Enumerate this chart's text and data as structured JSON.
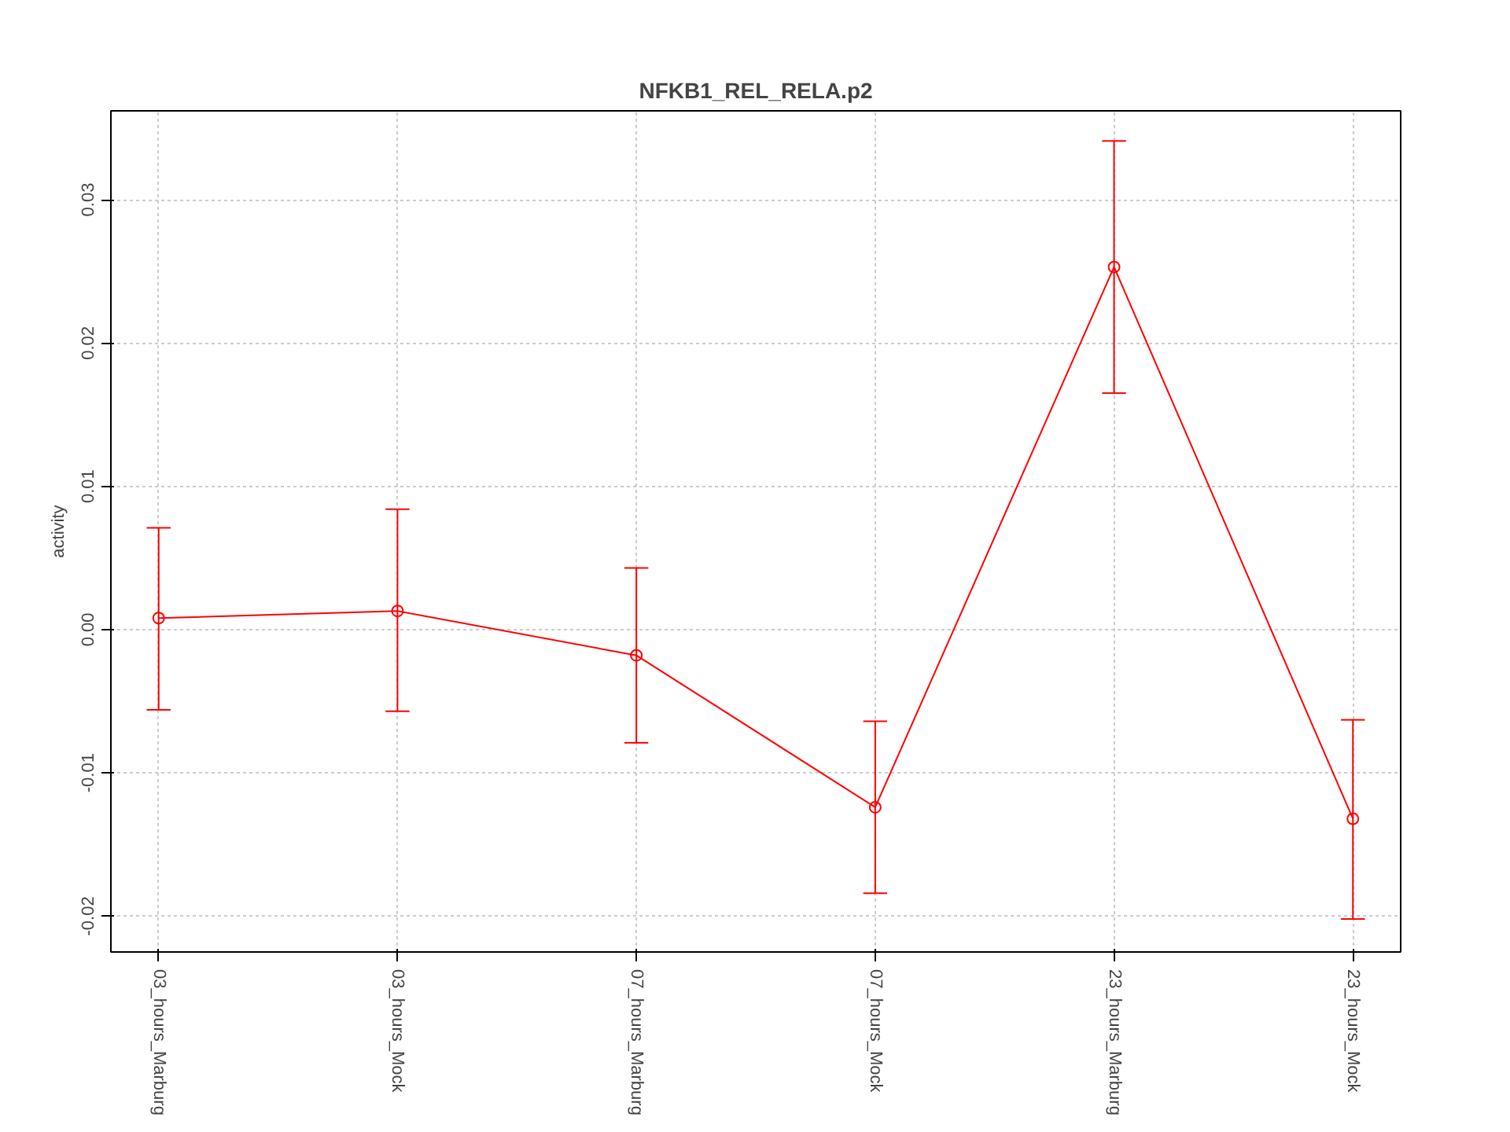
{
  "chart_data": {
    "type": "line",
    "title": "NFKB1_REL_RELA.p2",
    "ylabel": "activity",
    "categories": [
      "03_hours_Marburg",
      "03_hours_Mock",
      "07_hours_Marburg",
      "07_hours_Mock",
      "23_hours_Marburg",
      "23_hours_Mock"
    ],
    "series": [
      {
        "color": "#ff0000",
        "values": [
          0.0008,
          0.0013,
          -0.0018,
          -0.0124,
          0.0253,
          -0.0132
        ],
        "errors": [
          [
            -0.0056,
            0.0071
          ],
          [
            -0.0057,
            0.0084
          ],
          [
            -0.0079,
            0.0043
          ],
          [
            -0.0184,
            -0.0064
          ],
          [
            0.0165,
            0.0341
          ],
          [
            -0.0202,
            -0.0063
          ]
        ]
      }
    ],
    "ylim": [
      -0.0225,
      0.0362
    ],
    "yticks": [
      {
        "value": -0.02,
        "label": "-0.02"
      },
      {
        "value": -0.01,
        "label": "-0.01"
      },
      {
        "value": 0,
        "label": "0.00"
      },
      {
        "value": 0.01,
        "label": "0.01"
      },
      {
        "value": 0.02,
        "label": "0.02"
      },
      {
        "value": 0.03,
        "label": "0.03"
      }
    ],
    "grid": true,
    "marker": "circle",
    "line_style": "solid"
  }
}
